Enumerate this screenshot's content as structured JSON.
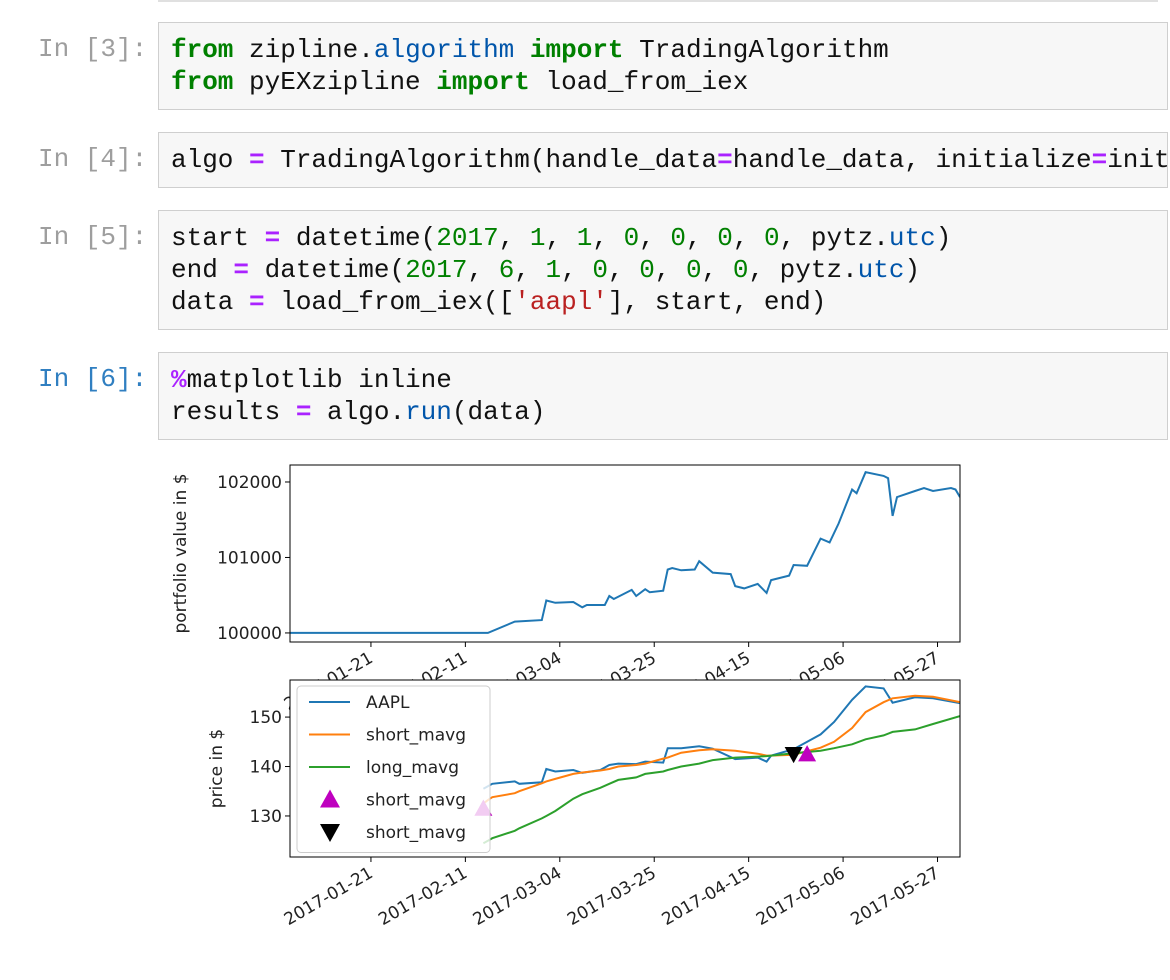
{
  "cells": [
    {
      "prompt": "In [3]:",
      "prompt_color": "#9e9e9e",
      "lines": [
        [
          {
            "t": "from",
            "c": "#008000",
            "b": true
          },
          {
            "t": " zipline."
          },
          {
            "t": "algorithm",
            "c": "#0055aa"
          },
          {
            "t": " "
          },
          {
            "t": "import",
            "c": "#008000",
            "b": true
          },
          {
            "t": " TradingAlgorithm"
          }
        ],
        [
          {
            "t": "from",
            "c": "#008000",
            "b": true
          },
          {
            "t": " pyEXzipline "
          },
          {
            "t": "import",
            "c": "#008000",
            "b": true
          },
          {
            "t": " load_from_iex"
          }
        ]
      ]
    },
    {
      "prompt": "In [4]:",
      "prompt_color": "#9e9e9e",
      "lines": [
        [
          {
            "t": "algo "
          },
          {
            "t": "=",
            "c": "#aa22ff",
            "b": true
          },
          {
            "t": " TradingAlgorithm(handle_data"
          },
          {
            "t": "=",
            "c": "#aa22ff",
            "b": true
          },
          {
            "t": "handle_data, initialize"
          },
          {
            "t": "=",
            "c": "#aa22ff",
            "b": true
          },
          {
            "t": "init"
          }
        ]
      ]
    },
    {
      "prompt": "In [5]:",
      "prompt_color": "#9e9e9e",
      "lines": [
        [
          {
            "t": "start "
          },
          {
            "t": "=",
            "c": "#aa22ff",
            "b": true
          },
          {
            "t": " datetime("
          },
          {
            "t": "2017",
            "c": "#008000"
          },
          {
            "t": ", "
          },
          {
            "t": "1",
            "c": "#008000"
          },
          {
            "t": ", "
          },
          {
            "t": "1",
            "c": "#008000"
          },
          {
            "t": ", "
          },
          {
            "t": "0",
            "c": "#008000"
          },
          {
            "t": ", "
          },
          {
            "t": "0",
            "c": "#008000"
          },
          {
            "t": ", "
          },
          {
            "t": "0",
            "c": "#008000"
          },
          {
            "t": ", "
          },
          {
            "t": "0",
            "c": "#008000"
          },
          {
            "t": ", pytz."
          },
          {
            "t": "utc",
            "c": "#0055aa"
          },
          {
            "t": ")"
          }
        ],
        [
          {
            "t": "end "
          },
          {
            "t": "=",
            "c": "#aa22ff",
            "b": true
          },
          {
            "t": " datetime("
          },
          {
            "t": "2017",
            "c": "#008000"
          },
          {
            "t": ", "
          },
          {
            "t": "6",
            "c": "#008000"
          },
          {
            "t": ", "
          },
          {
            "t": "1",
            "c": "#008000"
          },
          {
            "t": ", "
          },
          {
            "t": "0",
            "c": "#008000"
          },
          {
            "t": ", "
          },
          {
            "t": "0",
            "c": "#008000"
          },
          {
            "t": ", "
          },
          {
            "t": "0",
            "c": "#008000"
          },
          {
            "t": ", "
          },
          {
            "t": "0",
            "c": "#008000"
          },
          {
            "t": ", pytz."
          },
          {
            "t": "utc",
            "c": "#0055aa"
          },
          {
            "t": ")"
          }
        ],
        [
          {
            "t": "data "
          },
          {
            "t": "=",
            "c": "#aa22ff",
            "b": true
          },
          {
            "t": " load_from_iex(["
          },
          {
            "t": "'aapl'",
            "c": "#ba2121"
          },
          {
            "t": "], start, end)"
          }
        ]
      ]
    },
    {
      "prompt": "In [6]:",
      "prompt_color": "#307fc1",
      "lines": [
        [
          {
            "t": "%",
            "c": "#aa22ff",
            "b": true
          },
          {
            "t": "matplotlib inline"
          }
        ],
        [
          {
            "t": "results "
          },
          {
            "t": "=",
            "c": "#aa22ff",
            "b": true
          },
          {
            "t": " algo."
          },
          {
            "t": "run",
            "c": "#0055aa"
          },
          {
            "t": "(data)"
          }
        ]
      ]
    }
  ],
  "chart_data": [
    {
      "type": "line",
      "ylabel": "portfolio value in $",
      "x": [
        "2017-01-03",
        "2017-02-16",
        "2017-02-22",
        "2017-02-28",
        "2017-03-01",
        "2017-03-03",
        "2017-03-07",
        "2017-03-09",
        "2017-03-10",
        "2017-03-14",
        "2017-03-15",
        "2017-03-16",
        "2017-03-20",
        "2017-03-21",
        "2017-03-23",
        "2017-03-24",
        "2017-03-27",
        "2017-03-28",
        "2017-03-29",
        "2017-03-31",
        "2017-04-03",
        "2017-04-04",
        "2017-04-07",
        "2017-04-11",
        "2017-04-12",
        "2017-04-14",
        "2017-04-17",
        "2017-04-19",
        "2017-04-20",
        "2017-04-24",
        "2017-04-25",
        "2017-04-28",
        "2017-05-01",
        "2017-05-03",
        "2017-05-05",
        "2017-05-08",
        "2017-05-09",
        "2017-05-11",
        "2017-05-15",
        "2017-05-16",
        "2017-05-17",
        "2017-05-18",
        "2017-05-22",
        "2017-05-24",
        "2017-05-26",
        "2017-05-30",
        "2017-05-31",
        "2017-06-01"
      ],
      "series": [
        {
          "color": "#1f77b4",
          "values": [
            100000,
            100000,
            100150,
            100170,
            100430,
            100400,
            100410,
            100340,
            100370,
            100370,
            100490,
            100450,
            100570,
            100490,
            100580,
            100540,
            100560,
            100840,
            100860,
            100830,
            100840,
            100950,
            100800,
            100780,
            100620,
            100590,
            100650,
            100530,
            100700,
            100760,
            100900,
            100890,
            101250,
            101200,
            101450,
            101900,
            101850,
            102130,
            102080,
            102050,
            101550,
            101800,
            101880,
            101920,
            101880,
            101920,
            101900,
            101800
          ]
        }
      ],
      "xlim": [
        "2017-01-03",
        "2017-06-01"
      ],
      "xticks": [
        "2017-01-21",
        "2017-02-11",
        "2017-03-04",
        "2017-03-25",
        "2017-04-15",
        "2017-05-06",
        "2017-05-27"
      ],
      "ylim": [
        99880,
        102225
      ],
      "yticks": [
        100000,
        101000,
        102000
      ]
    },
    {
      "type": "line",
      "ylabel": "price in $",
      "legend": "upper left",
      "x": [
        "2017-02-15",
        "2017-02-16",
        "2017-02-17",
        "2017-02-22",
        "2017-02-23",
        "2017-02-28",
        "2017-03-01",
        "2017-03-03",
        "2017-03-07",
        "2017-03-09",
        "2017-03-13",
        "2017-03-15",
        "2017-03-17",
        "2017-03-21",
        "2017-03-23",
        "2017-03-27",
        "2017-03-28",
        "2017-03-31",
        "2017-04-04",
        "2017-04-07",
        "2017-04-12",
        "2017-04-17",
        "2017-04-19",
        "2017-04-20",
        "2017-04-25",
        "2017-05-01",
        "2017-05-04",
        "2017-05-08",
        "2017-05-11",
        "2017-05-15",
        "2017-05-17",
        "2017-05-22",
        "2017-05-26",
        "2017-06-01"
      ],
      "series": [
        {
          "name": "AAPL",
          "color": "#1f77b4",
          "values": [
            135.5,
            136.0,
            136.5,
            137.0,
            136.5,
            136.8,
            139.5,
            139.0,
            139.3,
            138.7,
            139.3,
            140.3,
            140.6,
            140.5,
            141.0,
            140.8,
            143.7,
            143.7,
            144.1,
            143.6,
            141.5,
            141.8,
            141.0,
            142.2,
            143.5,
            146.5,
            149.0,
            153.5,
            156.2,
            155.8,
            152.9,
            154.0,
            153.8,
            152.8
          ]
        },
        {
          "name": "short_mavg",
          "color": "#ff7f0e",
          "values": [
            132.5,
            133.2,
            133.8,
            134.6,
            135.0,
            136.6,
            137.0,
            137.5,
            138.5,
            138.8,
            139.2,
            139.5,
            140.0,
            140.3,
            140.6,
            141.6,
            141.8,
            142.8,
            143.3,
            143.5,
            143.2,
            142.6,
            142.2,
            142.2,
            142.4,
            143.8,
            145.0,
            147.8,
            151.0,
            153.0,
            153.8,
            154.3,
            154.1,
            153.0
          ]
        },
        {
          "name": "long_mavg",
          "color": "#2ca02c",
          "values": [
            124.5,
            125.0,
            125.5,
            127.0,
            127.5,
            129.5,
            130.0,
            131.0,
            133.5,
            134.4,
            135.7,
            136.5,
            137.3,
            137.8,
            138.5,
            139.0,
            139.3,
            140.0,
            140.6,
            141.3,
            141.8,
            142.0,
            142.1,
            142.2,
            142.7,
            143.2,
            143.7,
            144.5,
            145.5,
            146.3,
            147.0,
            147.5,
            148.6,
            150.2
          ]
        },
        {
          "name": "short_mavg",
          "color": "#bf00bf",
          "marker": "^",
          "x": [
            "2017-02-15",
            "2017-04-28"
          ],
          "values": [
            131.5,
            142.5
          ]
        },
        {
          "name": "short_mavg",
          "color": "#000000",
          "marker": "v",
          "x": [
            "2017-04-25"
          ],
          "values": [
            142.5
          ]
        }
      ],
      "xlim": [
        "2017-01-03",
        "2017-06-01"
      ],
      "xticks": [
        "2017-01-21",
        "2017-02-11",
        "2017-03-04",
        "2017-03-25",
        "2017-04-15",
        "2017-05-06",
        "2017-05-27"
      ],
      "ylim": [
        121.7,
        157.5
      ],
      "yticks": [
        130,
        140,
        150
      ]
    }
  ]
}
